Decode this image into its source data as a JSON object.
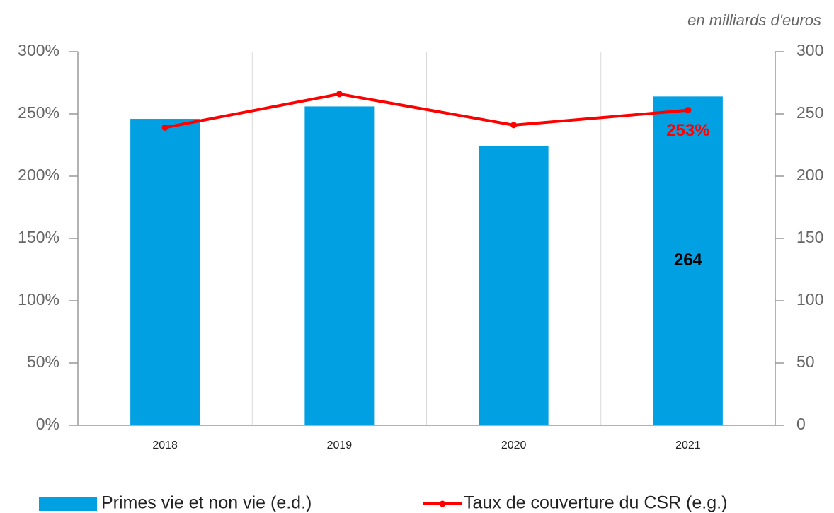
{
  "chart_data": {
    "type": "bar-line",
    "subtitle": "en milliards d'euros",
    "categories": [
      "2018",
      "2019",
      "2020",
      "2021"
    ],
    "series": [
      {
        "name": "Primes vie et non vie (e.d.)",
        "type": "bar",
        "axis": "y2",
        "color": "#00a0e3",
        "values": [
          246,
          256,
          224,
          264
        ],
        "value_labels": [
          null,
          null,
          null,
          "264"
        ]
      },
      {
        "name": "Taux de couverture du CSR (e.g.)",
        "type": "line",
        "axis": "y",
        "color": "#ff0000",
        "values": [
          239,
          266,
          241,
          253
        ],
        "value_labels": [
          null,
          null,
          null,
          "253%"
        ]
      }
    ],
    "ylim": [
      0,
      300
    ],
    "yticks": [
      {
        "value": 0,
        "label": "0%"
      },
      {
        "value": 50,
        "label": "50%"
      },
      {
        "value": 100,
        "label": "100%"
      },
      {
        "value": 150,
        "label": "150%"
      },
      {
        "value": 200,
        "label": "200%"
      },
      {
        "value": 250,
        "label": "250%"
      },
      {
        "value": 300,
        "label": "300%"
      }
    ],
    "y2lim": [
      0,
      300
    ],
    "y2ticks": [
      0,
      50,
      100,
      150,
      200,
      250,
      300
    ],
    "legend": "bottom"
  }
}
